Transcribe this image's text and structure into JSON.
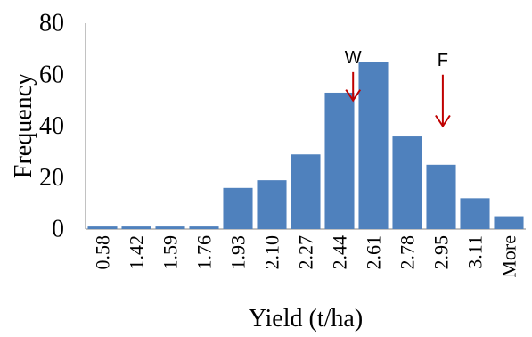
{
  "chart_data": {
    "type": "bar",
    "categories": [
      "0.58",
      "1.42",
      "1.59",
      "1.76",
      "1.93",
      "2.10",
      "2.27",
      "2.44",
      "2.61",
      "2.78",
      "2.95",
      "3.11",
      "More"
    ],
    "values": [
      1,
      1,
      1,
      1,
      16,
      19,
      29,
      53,
      65,
      36,
      25,
      12,
      5
    ],
    "xlabel": "Yield (t/ha)",
    "ylabel": "Frequency",
    "ylim": [
      0,
      80
    ],
    "yticks": [
      0,
      20,
      40,
      60,
      80
    ],
    "grid": false,
    "bar_color": "#4F81BD",
    "annotations": [
      {
        "label": "W",
        "x": 7.9,
        "arrow_from": 61,
        "arrow_to": 50,
        "color": "#C00000"
      },
      {
        "label": "F",
        "x": 10.55,
        "arrow_from": 60,
        "arrow_to": 40,
        "color": "#C00000"
      }
    ]
  }
}
